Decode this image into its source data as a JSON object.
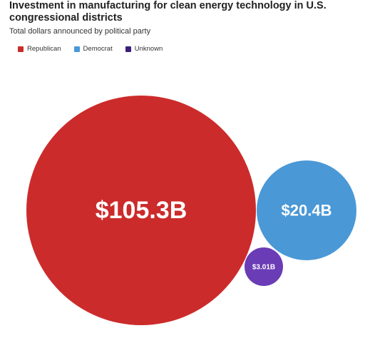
{
  "chart_data": {
    "type": "bubble",
    "title": "Investment in manufacturing for clean energy technology in U.S. congressional districts",
    "subtitle": "Total dollars announced by political party",
    "legend_position": "top-left",
    "series": [
      {
        "name": "Republican",
        "value": 105.3,
        "label": "$105.3B",
        "color": "#cc2b2b"
      },
      {
        "name": "Democrat",
        "value": 20.4,
        "label": "$20.4B",
        "color": "#4a98d6"
      },
      {
        "name": "Unknown",
        "value": 3.01,
        "label": "$3.01B",
        "color": "#6a3cb5"
      }
    ],
    "legend_colors": [
      "#cc2b2b",
      "#4a98d6",
      "#3b1f7a"
    ]
  }
}
